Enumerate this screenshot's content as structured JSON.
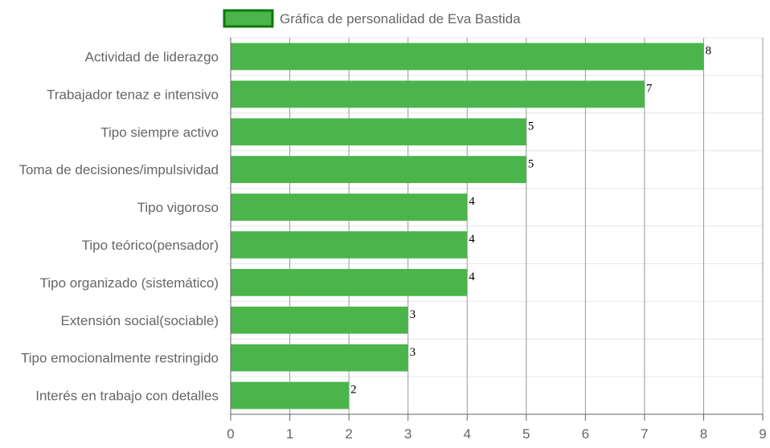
{
  "chart_data": {
    "type": "bar",
    "orientation": "horizontal",
    "categories": [
      "Actividad de liderazgo",
      "Trabajador tenaz e intensivo",
      "Tipo siempre activo",
      "Toma de decisiones/impulsividad",
      "Tipo vigoroso",
      "Tipo teórico(pensador)",
      "Tipo organizado (sistemático)",
      "Extensión social(sociable)",
      "Tipo emocionalmente restringido",
      "Interés en trabajo con detalles"
    ],
    "series": [
      {
        "name": "Gráfica de personalidad de Eva Bastida",
        "values": [
          8,
          7,
          5,
          5,
          4,
          4,
          4,
          3,
          3,
          2
        ]
      }
    ],
    "data_labels": [
      "8",
      "7",
      "5",
      "5",
      "4",
      "4",
      "4",
      "3",
      "3",
      "2"
    ],
    "title": "",
    "xlabel": "",
    "ylabel": "",
    "xlim": [
      0,
      9
    ],
    "x_ticks": [
      "0",
      "1",
      "2",
      "3",
      "4",
      "5",
      "6",
      "7",
      "8",
      "9"
    ],
    "grid": true,
    "legend_position": "top",
    "colors": {
      "bar_fill": "#4bb54b",
      "legend_border": "#0a7a0a",
      "grid_vertical": "#999999",
      "grid_horizontal": "#e6e6e6",
      "axis": "#666666"
    }
  }
}
